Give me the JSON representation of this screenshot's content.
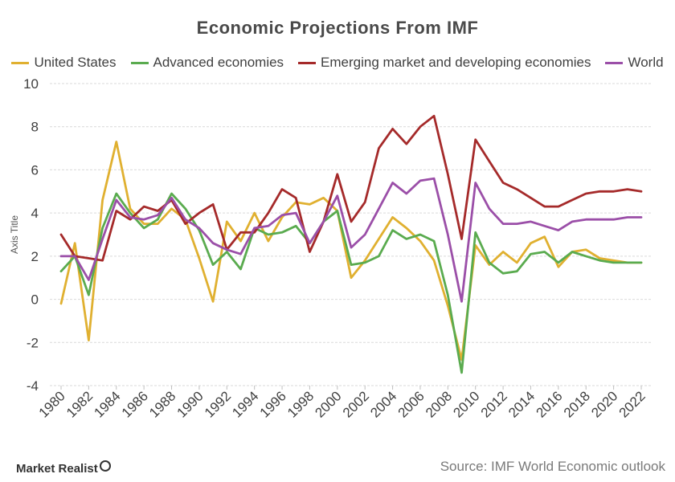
{
  "chart_data": {
    "type": "line",
    "title": "Economic Projections From IMF",
    "ylabel": "Axis Title",
    "xlabel": "",
    "ylim": [
      -4,
      10
    ],
    "yticks": [
      -4,
      -2,
      0,
      2,
      4,
      6,
      8,
      10
    ],
    "xticks": [
      1980,
      1982,
      1984,
      1986,
      1988,
      1990,
      1992,
      1994,
      1996,
      1998,
      2000,
      2002,
      2004,
      2006,
      2008,
      2010,
      2012,
      2014,
      2016,
      2018,
      2020,
      2022
    ],
    "grid": true,
    "legend_position": "top",
    "x": [
      1980,
      1981,
      1982,
      1983,
      1984,
      1985,
      1986,
      1987,
      1988,
      1989,
      1990,
      1991,
      1992,
      1993,
      1994,
      1995,
      1996,
      1997,
      1998,
      1999,
      2000,
      2001,
      2002,
      2003,
      2004,
      2005,
      2006,
      2007,
      2008,
      2009,
      2010,
      2011,
      2012,
      2013,
      2014,
      2015,
      2016,
      2017,
      2018,
      2019,
      2020,
      2021,
      2022
    ],
    "series": [
      {
        "name": "United States",
        "color": "#e0b030",
        "values": [
          -0.2,
          2.6,
          -1.9,
          4.6,
          7.3,
          4.2,
          3.5,
          3.5,
          4.2,
          3.7,
          1.9,
          -0.1,
          3.6,
          2.7,
          4.0,
          2.7,
          3.8,
          4.5,
          4.4,
          4.7,
          4.1,
          1.0,
          1.8,
          2.8,
          3.8,
          3.3,
          2.7,
          1.8,
          -0.3,
          -2.8,
          2.5,
          1.6,
          2.2,
          1.7,
          2.6,
          2.9,
          1.5,
          2.2,
          2.3,
          1.9,
          1.8,
          1.7,
          1.7
        ]
      },
      {
        "name": "Advanced economies",
        "color": "#5aab4f",
        "values": [
          1.3,
          2.0,
          0.2,
          3.3,
          4.9,
          4.0,
          3.3,
          3.7,
          4.9,
          4.2,
          3.2,
          1.6,
          2.2,
          1.4,
          3.3,
          3.0,
          3.1,
          3.4,
          2.6,
          3.6,
          4.1,
          1.6,
          1.7,
          2.0,
          3.2,
          2.8,
          3.0,
          2.7,
          0.2,
          -3.4,
          3.1,
          1.7,
          1.2,
          1.3,
          2.1,
          2.2,
          1.7,
          2.2,
          2.0,
          1.8,
          1.7,
          1.7,
          1.7
        ]
      },
      {
        "name": "Emerging market and developing economies",
        "color": "#a52a2a",
        "values": [
          3.0,
          2.0,
          1.9,
          1.8,
          4.1,
          3.7,
          4.3,
          4.1,
          4.6,
          3.5,
          4.0,
          4.4,
          2.3,
          3.1,
          3.1,
          4.0,
          5.1,
          4.7,
          2.2,
          3.6,
          5.8,
          3.6,
          4.5,
          7.0,
          7.9,
          7.2,
          8.0,
          8.5,
          5.8,
          2.8,
          7.4,
          6.4,
          5.4,
          5.1,
          4.7,
          4.3,
          4.3,
          4.6,
          4.9,
          5.0,
          5.0,
          5.1,
          5.0
        ]
      },
      {
        "name": "World",
        "color": "#9b4fa8",
        "values": [
          2.0,
          2.0,
          0.9,
          2.8,
          4.6,
          3.8,
          3.7,
          3.9,
          4.7,
          3.7,
          3.3,
          2.6,
          2.3,
          2.1,
          3.3,
          3.4,
          3.9,
          4.0,
          2.6,
          3.6,
          4.8,
          2.4,
          3.0,
          4.2,
          5.4,
          4.9,
          5.5,
          5.6,
          3.0,
          -0.1,
          5.4,
          4.2,
          3.5,
          3.5,
          3.6,
          3.4,
          3.2,
          3.6,
          3.7,
          3.7,
          3.7,
          3.8,
          3.8
        ]
      }
    ]
  },
  "footer": {
    "source": "Source: IMF World Economic outlook",
    "logo_text": "Market Realist"
  }
}
